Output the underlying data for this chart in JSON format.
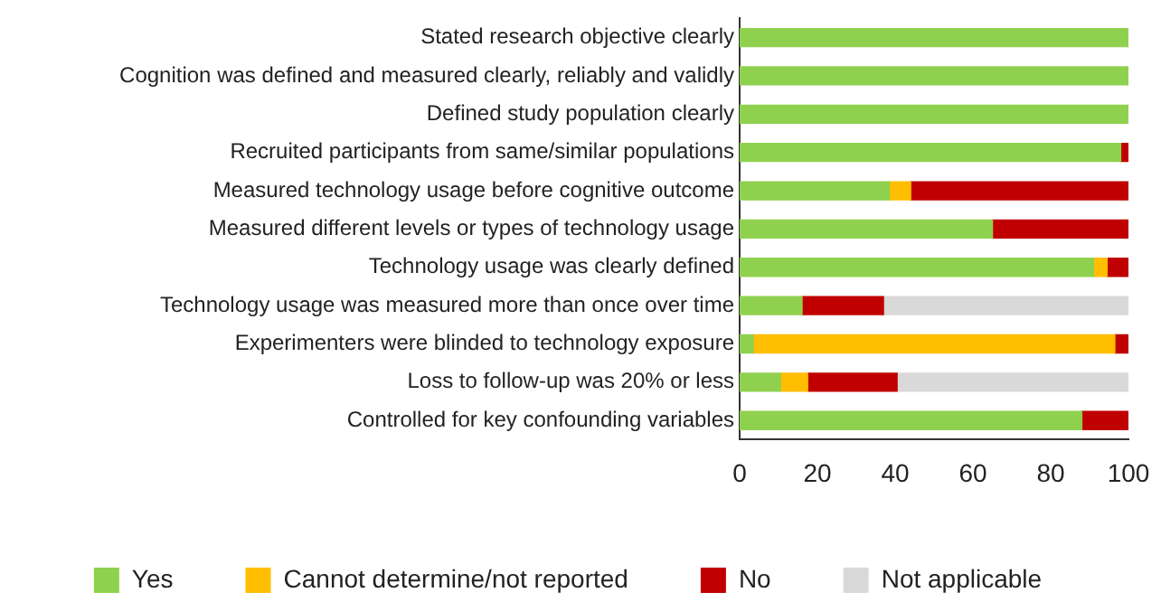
{
  "chart_data": {
    "type": "bar",
    "orientation": "horizontal",
    "stacked": true,
    "categories": [
      "Stated research objective clearly",
      "Cognition was defined and measured clearly, reliably and validly",
      "Defined study population clearly",
      "Recruited participants from same/similar populations",
      "Measured technology usage before cognitive outcome",
      "Measured different levels or types of technology usage",
      "Technology usage was clearly defined",
      "Technology usage was measured more than once over time",
      "Experimenters were blinded to technology exposure",
      "Loss to follow-up was 20% or less",
      "Controlled for key confounding variables"
    ],
    "series": [
      {
        "name": "Yes",
        "color": "#8fd14f",
        "values": [
          100,
          100,
          100,
          98,
          38.5,
          65,
          91,
          16,
          3.5,
          10.5,
          88
        ]
      },
      {
        "name": "Cannot determine/not reported",
        "color": "#ffbe00",
        "values": [
          0,
          0,
          0,
          0,
          5.5,
          0,
          3.5,
          0,
          93,
          7,
          0
        ]
      },
      {
        "name": "No",
        "color": "#c00000",
        "values": [
          0,
          0,
          0,
          2,
          56,
          35,
          5.5,
          21,
          3.5,
          23,
          12
        ]
      },
      {
        "name": "Not applicable",
        "color": "#d9d9d9",
        "values": [
          0,
          0,
          0,
          0,
          0,
          0,
          0,
          63,
          0,
          59.5,
          0
        ]
      }
    ],
    "xlim": [
      0,
      100
    ],
    "xticks": [
      0,
      20,
      40,
      60,
      80,
      100
    ],
    "grid": false,
    "legend": "bottom"
  }
}
